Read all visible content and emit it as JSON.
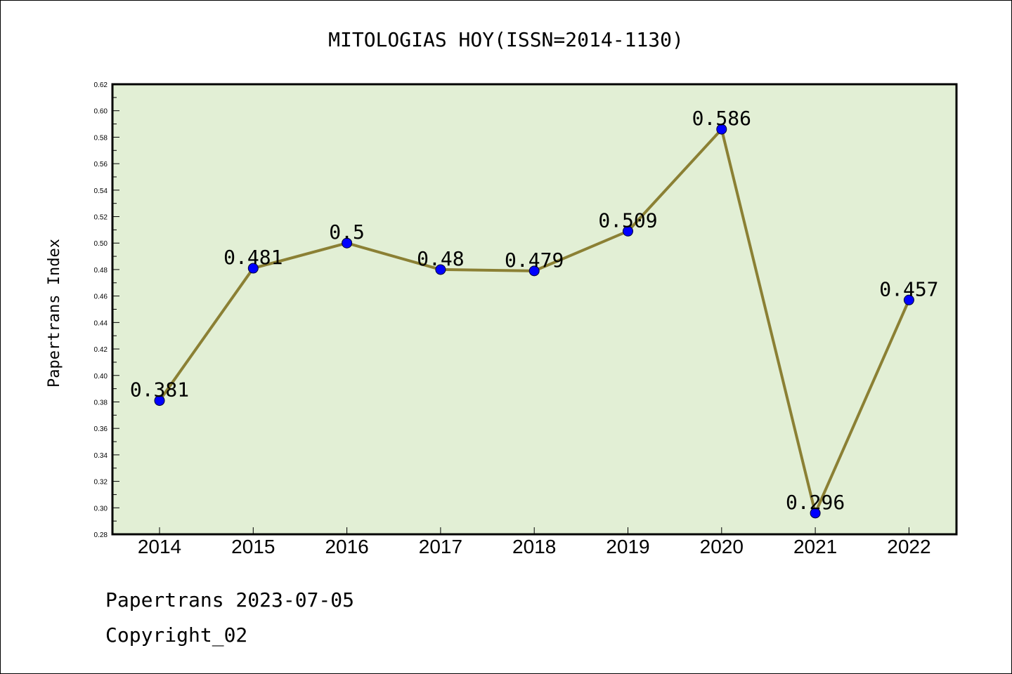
{
  "chart_data": {
    "type": "line",
    "title": "MITOLOGIAS HOY(ISSN=2014-1130)",
    "xlabel": "",
    "ylabel": "Papertrans Index",
    "categories": [
      "2014",
      "2015",
      "2016",
      "2017",
      "2018",
      "2019",
      "2020",
      "2021",
      "2022"
    ],
    "values": [
      0.381,
      0.481,
      0.5,
      0.48,
      0.479,
      0.509,
      0.586,
      0.296,
      0.457
    ],
    "data_labels": [
      "0.381",
      "0.481",
      "0.5",
      "0.48",
      "0.479",
      "0.509",
      "0.586",
      "0.296",
      "0.457"
    ],
    "ylim": [
      0.28,
      0.62
    ],
    "yticks": [
      "0.28",
      "0.30",
      "0.32",
      "0.34",
      "0.36",
      "0.38",
      "0.40",
      "0.42",
      "0.44",
      "0.46",
      "0.48",
      "0.50",
      "0.52",
      "0.54",
      "0.56",
      "0.58",
      "0.60",
      "0.62"
    ],
    "grid": false,
    "colors": {
      "plot_background": "#e2efd5",
      "line": "#8b8034",
      "marker": "#0000ff"
    }
  },
  "footer": {
    "line1": "Papertrans 2023-07-05",
    "line2": "Copyright_02"
  }
}
